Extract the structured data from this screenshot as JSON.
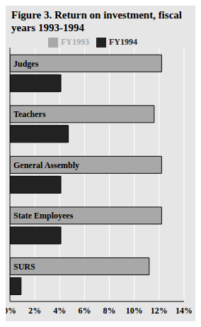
{
  "chart_data": {
    "type": "bar",
    "title": "Figure 3. Return on investment, fiscal years 1993-1994",
    "orientation": "horizontal",
    "categories": [
      "Judges",
      "Teachers",
      "General Assembly",
      "State Employees",
      "SURS"
    ],
    "series": [
      {
        "name": "FY1993",
        "color": "#a8a8a8",
        "values": [
          12.2,
          11.6,
          12.2,
          12.2,
          11.2
        ]
      },
      {
        "name": "FY1994",
        "color": "#222222",
        "values": [
          4.1,
          4.7,
          4.1,
          4.1,
          0.9
        ]
      }
    ],
    "xlim": [
      0,
      14
    ],
    "xticks": [
      {
        "value": 0,
        "label": "0%"
      },
      {
        "value": 2,
        "label": "2%"
      },
      {
        "value": 4,
        "label": "4%"
      },
      {
        "value": 6,
        "label": "6%"
      },
      {
        "value": 8,
        "label": "8%"
      },
      {
        "value": 10,
        "label": "10%"
      },
      {
        "value": 12,
        "label": "12%"
      },
      {
        "value": 14,
        "label": "14%"
      }
    ],
    "grid": true,
    "legend": "top"
  }
}
